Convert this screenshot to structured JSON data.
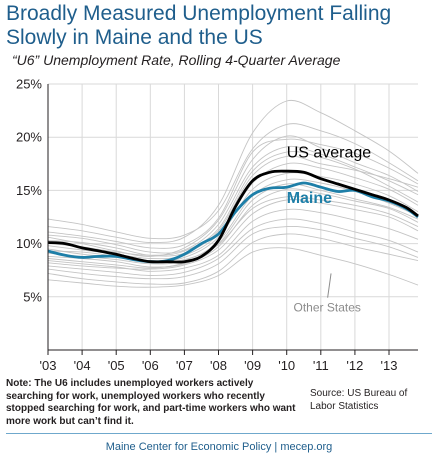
{
  "title": "Broadly Measured Unemployment  Falling Slowly in Maine and the US",
  "subtitle": "“U6” Unemployment Rate, Rolling 4-Quarter Average",
  "note": "Note: The U6 includes unemployed workers actively searching for work, unemployed workers who recently stopped searching for work, and part-time workers who want more work but can’t find it.",
  "source": "Source: US Bureau of Labor Statistics",
  "footer": "Maine Center for Economic Policy | mecep.org",
  "colors": {
    "us": "#000000",
    "maine": "#1e7fa8",
    "states": "#c4c4c4",
    "title": "#1f5e8c"
  },
  "chart_data": {
    "type": "line",
    "title": "",
    "xlabel": "",
    "ylabel": "",
    "ylim": [
      0,
      25
    ],
    "xlim": [
      2003,
      2013.85
    ],
    "yticks": [
      5,
      10,
      15,
      20,
      25
    ],
    "ytick_labels": [
      "5%",
      "10%",
      "15%",
      "20%",
      "25%"
    ],
    "xticks": [
      2003,
      2004,
      2005,
      2006,
      2007,
      2008,
      2009,
      2010,
      2011,
      2012,
      2013
    ],
    "xtick_labels": [
      "'03",
      "'04",
      "'05",
      "'06",
      "'07",
      "'08",
      "'09",
      "'10",
      "'11",
      "'12",
      "'13"
    ],
    "grid": true,
    "legend": "none",
    "annotations": [
      {
        "text": "US average",
        "x": 2010.0,
        "y": 18.1
      },
      {
        "text": "Maine",
        "x": 2010.0,
        "y": 13.8
      },
      {
        "text": "Other States",
        "x": 2010.2,
        "y": 3.6
      }
    ],
    "series": [
      {
        "name": "US average",
        "x": [
          2003,
          2003.5,
          2004,
          2004.5,
          2005,
          2005.5,
          2006,
          2006.5,
          2007,
          2007.5,
          2008,
          2008.5,
          2009,
          2009.5,
          2010,
          2010.5,
          2011,
          2011.5,
          2012,
          2012.5,
          2013,
          2013.5,
          2013.85
        ],
        "y": [
          10.1,
          10.0,
          9.6,
          9.3,
          9.0,
          8.6,
          8.3,
          8.3,
          8.3,
          8.8,
          10.3,
          13.5,
          15.9,
          16.7,
          16.8,
          16.7,
          16.1,
          15.6,
          15.1,
          14.6,
          14.1,
          13.4,
          12.6
        ]
      },
      {
        "name": "Maine",
        "x": [
          2003,
          2003.5,
          2004,
          2004.5,
          2005,
          2005.5,
          2006,
          2006.5,
          2007,
          2007.5,
          2008,
          2008.5,
          2009,
          2009.5,
          2010,
          2010.5,
          2011,
          2011.5,
          2012,
          2012.5,
          2013,
          2013.5,
          2013.85
        ],
        "y": [
          9.3,
          8.9,
          8.7,
          8.8,
          8.8,
          8.5,
          8.3,
          8.4,
          9.0,
          10.0,
          10.9,
          13.0,
          14.6,
          15.2,
          15.3,
          15.7,
          15.3,
          14.9,
          15.0,
          14.4,
          14.0,
          13.3,
          12.5
        ]
      },
      {
        "name": "",
        "x": [
          2003,
          2004,
          2005,
          2006,
          2007,
          2008,
          2009,
          2010,
          2011,
          2012,
          2013,
          2013.85
        ],
        "y": [
          8.4,
          8.1,
          7.8,
          7.4,
          7.7,
          8.9,
          12.1,
          13.2,
          12.9,
          12.2,
          11.4,
          10.4
        ]
      },
      {
        "name": "",
        "x": [
          2003,
          2004,
          2005,
          2006,
          2007,
          2008,
          2009,
          2010,
          2011,
          2012,
          2013,
          2013.85
        ],
        "y": [
          7.2,
          6.7,
          6.4,
          6.2,
          6.3,
          7.4,
          10.1,
          10.9,
          10.5,
          9.7,
          9.0,
          8.4
        ]
      },
      {
        "name": "",
        "x": [
          2003,
          2004,
          2005,
          2006,
          2007,
          2008,
          2009,
          2010,
          2011,
          2012,
          2013,
          2013.85
        ],
        "y": [
          9.1,
          8.8,
          8.5,
          8.1,
          8.4,
          10.2,
          14.5,
          16.0,
          15.7,
          14.9,
          13.8,
          12.6
        ]
      },
      {
        "name": "",
        "x": [
          2003,
          2004,
          2005,
          2006,
          2007,
          2008,
          2009,
          2010,
          2011,
          2012,
          2013,
          2013.85
        ],
        "y": [
          10.8,
          10.5,
          9.9,
          9.2,
          9.4,
          11.8,
          17.2,
          19.1,
          18.4,
          17.2,
          15.9,
          14.6
        ]
      },
      {
        "name": "",
        "x": [
          2003,
          2004,
          2005,
          2006,
          2007,
          2008,
          2009,
          2010,
          2011,
          2012,
          2013,
          2013.85
        ],
        "y": [
          11.6,
          11.2,
          10.6,
          10.1,
          10.6,
          13.6,
          20.4,
          23.4,
          22.3,
          20.6,
          18.7,
          16.6
        ]
      },
      {
        "name": "",
        "x": [
          2003,
          2004,
          2005,
          2006,
          2007,
          2008,
          2009,
          2010,
          2011,
          2012,
          2013,
          2013.85
        ],
        "y": [
          8.8,
          8.6,
          8.3,
          7.8,
          8.1,
          9.7,
          13.6,
          15.1,
          14.7,
          14.0,
          13.3,
          12.0
        ]
      },
      {
        "name": "",
        "x": [
          2003,
          2004,
          2005,
          2006,
          2007,
          2008,
          2009,
          2010,
          2011,
          2012,
          2013,
          2013.85
        ],
        "y": [
          9.8,
          9.4,
          9.0,
          8.6,
          8.9,
          10.9,
          15.7,
          17.5,
          17.1,
          16.2,
          15.1,
          13.6
        ]
      },
      {
        "name": "",
        "x": [
          2003,
          2004,
          2005,
          2006,
          2007,
          2008,
          2009,
          2010,
          2011,
          2012,
          2013,
          2013.85
        ],
        "y": [
          10.3,
          10.1,
          9.6,
          8.9,
          9.1,
          11.2,
          16.4,
          18.2,
          17.5,
          16.9,
          16.1,
          15.3
        ]
      },
      {
        "name": "",
        "x": [
          2003,
          2004,
          2005,
          2006,
          2007,
          2008,
          2009,
          2010,
          2011,
          2012,
          2013,
          2013.85
        ],
        "y": [
          7.9,
          7.6,
          7.3,
          7.0,
          7.3,
          8.6,
          11.4,
          12.3,
          11.9,
          11.1,
          10.3,
          9.2
        ]
      },
      {
        "name": "",
        "x": [
          2003,
          2004,
          2005,
          2006,
          2007,
          2008,
          2009,
          2010,
          2011,
          2012,
          2013,
          2013.85
        ],
        "y": [
          9.5,
          9.0,
          8.7,
          8.4,
          8.7,
          10.6,
          15.1,
          16.6,
          16.3,
          15.6,
          14.5,
          13.0
        ]
      },
      {
        "name": "",
        "x": [
          2003,
          2004,
          2005,
          2006,
          2007,
          2008,
          2009,
          2010,
          2011,
          2012,
          2013,
          2013.85
        ],
        "y": [
          6.6,
          6.3,
          6.0,
          5.9,
          6.1,
          7.0,
          9.2,
          9.6,
          8.9,
          8.1,
          7.1,
          6.1
        ]
      },
      {
        "name": "",
        "x": [
          2003,
          2004,
          2005,
          2006,
          2007,
          2008,
          2009,
          2010,
          2011,
          2012,
          2013,
          2013.85
        ],
        "y": [
          12.3,
          11.8,
          11.1,
          10.5,
          10.8,
          13.1,
          18.9,
          21.2,
          20.6,
          19.4,
          17.6,
          15.9
        ]
      },
      {
        "name": "",
        "x": [
          2003,
          2004,
          2005,
          2006,
          2007,
          2008,
          2009,
          2010,
          2011,
          2012,
          2013,
          2013.85
        ],
        "y": [
          8.2,
          7.9,
          7.7,
          7.6,
          8.0,
          9.4,
          12.8,
          14.1,
          13.8,
          13.2,
          12.5,
          11.2
        ]
      },
      {
        "name": "",
        "x": [
          2003,
          2004,
          2005,
          2006,
          2007,
          2008,
          2009,
          2010,
          2011,
          2012,
          2013,
          2013.85
        ],
        "y": [
          10.6,
          10.0,
          9.3,
          8.8,
          9.6,
          12.2,
          17.9,
          20.1,
          19.0,
          17.6,
          16.4,
          14.9
        ]
      },
      {
        "name": "",
        "x": [
          2003,
          2004,
          2005,
          2006,
          2007,
          2008,
          2009,
          2010,
          2011,
          2012,
          2013,
          2013.85
        ],
        "y": [
          7.6,
          7.2,
          6.9,
          6.7,
          6.9,
          8.1,
          10.9,
          11.6,
          11.3,
          10.5,
          9.7,
          8.7
        ]
      },
      {
        "name": "",
        "x": [
          2003,
          2004,
          2005,
          2006,
          2007,
          2008,
          2009,
          2010,
          2011,
          2012,
          2013,
          2013.85
        ],
        "y": [
          9.3,
          9.2,
          8.8,
          8.4,
          8.5,
          10.0,
          14.1,
          15.6,
          15.0,
          14.2,
          13.4,
          12.3
        ]
      },
      {
        "name": "",
        "x": [
          2003,
          2004,
          2005,
          2006,
          2007,
          2008,
          2009,
          2010,
          2011,
          2012,
          2013,
          2013.85
        ],
        "y": [
          11.1,
          10.7,
          10.2,
          9.6,
          9.9,
          12.4,
          18.6,
          19.8,
          19.3,
          18.5,
          17.1,
          15.6
        ]
      },
      {
        "name": "",
        "x": [
          2003,
          2004,
          2005,
          2006,
          2007,
          2008,
          2009,
          2010,
          2011,
          2012,
          2013,
          2013.85
        ],
        "y": [
          8.6,
          8.3,
          8.0,
          7.7,
          8.2,
          9.9,
          13.3,
          14.4,
          14.1,
          13.6,
          12.8,
          11.6
        ]
      },
      {
        "name": "",
        "x": [
          2003,
          2004,
          2005,
          2006,
          2007,
          2008,
          2009,
          2010,
          2011,
          2012,
          2013,
          2013.85
        ],
        "y": [
          10.0,
          9.7,
          9.2,
          8.9,
          9.3,
          11.4,
          16.8,
          18.6,
          18.1,
          17.0,
          15.4,
          13.9
        ]
      }
    ]
  }
}
